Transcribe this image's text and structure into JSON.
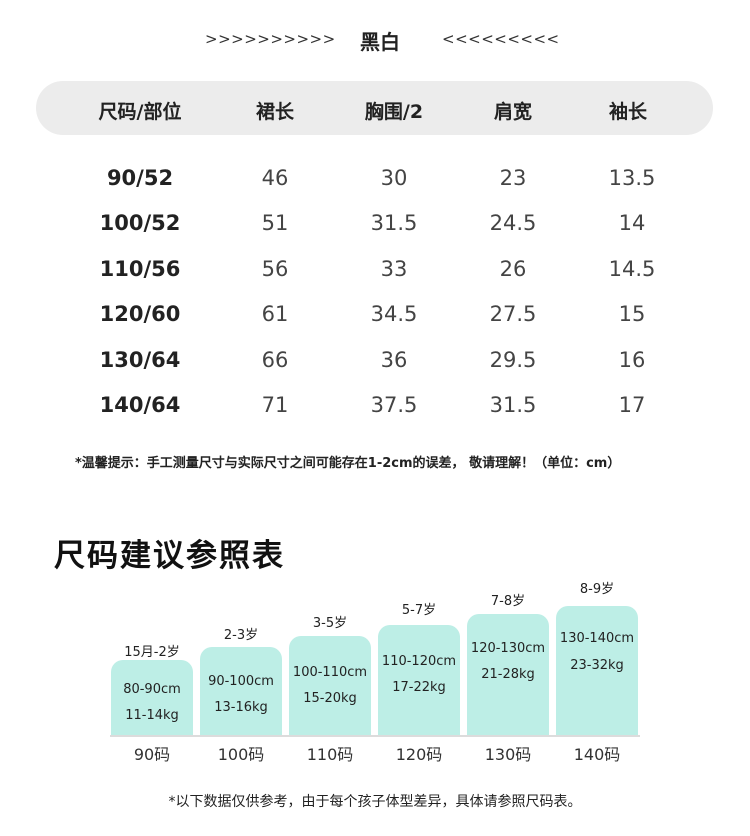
{
  "title": {
    "arrows_left": ">>>>>>>>>>",
    "color_name": "黑白",
    "arrows_right": "<<<<<<<<<"
  },
  "table": {
    "headers": [
      "尺码/部位",
      "裙长",
      "胸围/2",
      "肩宽",
      "袖长"
    ],
    "rows": [
      [
        "90/52",
        "46",
        "30",
        "23",
        "13.5"
      ],
      [
        "100/52",
        "51",
        "31.5",
        "24.5",
        "14"
      ],
      [
        "110/56",
        "56",
        "33",
        "26",
        "14.5"
      ],
      [
        "120/60",
        "61",
        "34.5",
        "27.5",
        "15"
      ],
      [
        "130/64",
        "66",
        "36",
        "29.5",
        "16"
      ],
      [
        "140/64",
        "71",
        "37.5",
        "31.5",
        "17"
      ]
    ]
  },
  "note_measure": "*温馨提示：手工测量尺寸与实际尺寸之间可能存在1-2cm的误差， 敬请理解！（单位：cm）",
  "size_guide": {
    "title": "尺码建议参照表",
    "bar_color": "#bdeee6",
    "items": [
      {
        "age": "15月-2岁",
        "height": "80-90cm",
        "weight": "11-14kg",
        "size": "90码"
      },
      {
        "age": "2-3岁",
        "height": "90-100cm",
        "weight": "13-16kg",
        "size": "100码"
      },
      {
        "age": "3-5岁",
        "height": "100-110cm",
        "weight": "15-20kg",
        "size": "110码"
      },
      {
        "age": "5-7岁",
        "height": "110-120cm",
        "weight": "17-22kg",
        "size": "120码"
      },
      {
        "age": "7-8岁",
        "height": "120-130cm",
        "weight": "21-28kg",
        "size": "130码"
      },
      {
        "age": "8-9岁",
        "height": "130-140cm",
        "weight": "23-32kg",
        "size": "140码"
      }
    ]
  },
  "note_reference": "*以下数据仅供参考，由于每个孩子体型差异，具体请参照尺码表。"
}
